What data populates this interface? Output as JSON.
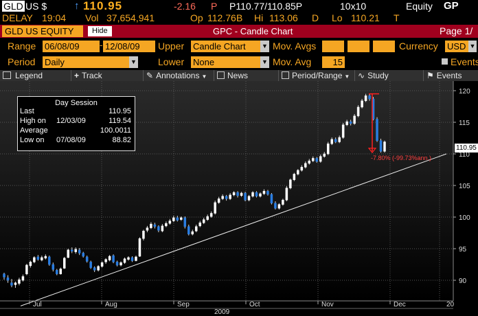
{
  "quote": {
    "ticker": "GLD",
    "market": "US $",
    "arrow": "↑",
    "last": "110.95",
    "change": "-2.16",
    "change_flag": "P",
    "bid_ask": "P110.77/110.85P",
    "size": "10x10",
    "sector": "Equity",
    "sector_code": "GP",
    "delay_label": "DELAY",
    "delay_time": "19:04",
    "vol_label": "Vol",
    "vol": "37,654,941",
    "op_label": "Op",
    "op": "112.76",
    "op_flag": "B",
    "hi_label": "Hi",
    "hi": "113.06",
    "hi_flag": "D",
    "lo_label": "Lo",
    "lo": "110.21",
    "lo_flag": "T"
  },
  "titlebar": {
    "security": "GLD US EQUITY",
    "hide": "Hide",
    "title": "GPC - Candle Chart",
    "page": "Page 1/"
  },
  "controls": {
    "range_label": "Range",
    "start_date": "06/08/09",
    "end_date": "12/08/09",
    "upper_label": "Upper",
    "upper_value": "Candle Chart",
    "mov_avgs_label": "Mov. Avgs",
    "currency_label": "Currency",
    "currency_value": "USD",
    "period_label": "Period",
    "period_value": "Daily",
    "lower_label": "Lower",
    "lower_value": "None",
    "mov_avg_label": "Mov. Avg",
    "mov_avg_value": "15",
    "events_label": "Events"
  },
  "toolbar": {
    "legend": "Legend",
    "track": "Track",
    "annotations": "Annotations",
    "news": "News",
    "period_range": "Period/Range",
    "study": "Study",
    "events": "Events"
  },
  "day_session": {
    "title": "Day Session",
    "last_label": "Last",
    "last_value": "110.95",
    "high_label": "High on",
    "high_date": "12/03/09",
    "high_value": "119.54",
    "avg_label": "Average",
    "avg_value": "100.0011",
    "low_label": "Low on",
    "low_date": "07/08/09",
    "low_value": "88.82"
  },
  "annotation": {
    "drop_text": "-7.80% (-99.73%ann.)"
  },
  "price_flag": "110.95",
  "colors": {
    "amber": "#f5a623",
    "red_bar": "#a0001e",
    "up_candle": "#ffffff",
    "down_candle": "#2a7de1"
  },
  "chart_data": {
    "type": "candlestick",
    "ylim": [
      88,
      121
    ],
    "y_ticks": [
      "90",
      "95",
      "100",
      "105",
      "110",
      "115",
      "120"
    ],
    "x_months": [
      "Jul",
      "Aug",
      "Sep",
      "Oct",
      "Nov",
      "Dec"
    ],
    "x_year": "2009",
    "x_right_label": "20",
    "trendline": {
      "start": [
        0,
        88.0
      ],
      "end": [
        129,
        110.0
      ]
    },
    "candles": [
      [
        91.0,
        90.5,
        91.2,
        90.1
      ],
      [
        90.4,
        90.0,
        90.8,
        89.6
      ],
      [
        89.6,
        89.2,
        90.2,
        88.9
      ],
      [
        89.3,
        89.6,
        89.8,
        88.8
      ],
      [
        89.5,
        90.1,
        90.4,
        89.2
      ],
      [
        90.0,
        90.6,
        90.9,
        89.8
      ],
      [
        91.0,
        92.4,
        92.6,
        90.8
      ],
      [
        92.3,
        92.9,
        93.1,
        92.0
      ],
      [
        92.9,
        93.6,
        93.8,
        92.7
      ],
      [
        93.7,
        93.3,
        94.0,
        93.1
      ],
      [
        93.2,
        93.6,
        93.9,
        93.0
      ],
      [
        93.5,
        93.8,
        94.1,
        93.3
      ],
      [
        93.7,
        92.5,
        93.9,
        92.3
      ],
      [
        92.5,
        91.7,
        92.8,
        91.4
      ],
      [
        91.6,
        91.0,
        91.8,
        90.8
      ],
      [
        91.0,
        91.8,
        92.0,
        90.9
      ],
      [
        91.9,
        93.5,
        93.7,
        91.8
      ],
      [
        93.6,
        94.8,
        95.0,
        93.5
      ],
      [
        94.8,
        94.6,
        95.2,
        94.3
      ],
      [
        94.5,
        94.9,
        95.2,
        94.2
      ],
      [
        94.8,
        94.3,
        95.1,
        94.0
      ],
      [
        94.3,
        93.8,
        94.5,
        93.6
      ],
      [
        93.7,
        93.0,
        93.9,
        92.8
      ],
      [
        92.9,
        92.0,
        93.1,
        91.8
      ],
      [
        92.0,
        91.6,
        92.2,
        91.3
      ],
      [
        91.6,
        92.2,
        92.4,
        91.4
      ],
      [
        92.2,
        92.8,
        93.0,
        92.0
      ],
      [
        92.9,
        93.3,
        93.5,
        92.6
      ],
      [
        93.2,
        93.8,
        94.0,
        93.0
      ],
      [
        93.9,
        92.9,
        94.1,
        92.7
      ],
      [
        92.9,
        92.4,
        93.1,
        92.2
      ],
      [
        92.4,
        92.8,
        93.0,
        92.2
      ],
      [
        92.8,
        93.4,
        93.6,
        92.6
      ],
      [
        93.3,
        93.6,
        93.8,
        93.1
      ],
      [
        93.6,
        93.1,
        93.8,
        92.9
      ],
      [
        93.1,
        93.7,
        93.9,
        93.0
      ],
      [
        93.8,
        96.6,
        96.8,
        93.7
      ],
      [
        96.6,
        97.8,
        98.0,
        96.3
      ],
      [
        97.9,
        98.3,
        98.6,
        97.6
      ],
      [
        98.3,
        98.9,
        99.2,
        98.1
      ],
      [
        98.8,
        98.5,
        99.1,
        98.2
      ],
      [
        98.5,
        97.9,
        98.7,
        97.6
      ],
      [
        97.8,
        98.6,
        98.9,
        97.6
      ],
      [
        98.6,
        99.0,
        99.3,
        98.4
      ],
      [
        99.0,
        99.4,
        99.7,
        98.8
      ],
      [
        99.4,
        99.9,
        100.2,
        99.2
      ],
      [
        99.9,
        99.5,
        100.2,
        99.3
      ],
      [
        99.6,
        99.9,
        100.1,
        99.4
      ],
      [
        99.9,
        98.5,
        100.1,
        98.2
      ],
      [
        98.5,
        97.3,
        98.8,
        97.1
      ],
      [
        97.3,
        97.7,
        98.0,
        97.1
      ],
      [
        97.8,
        98.5,
        98.8,
        97.6
      ],
      [
        98.6,
        99.1,
        99.4,
        98.4
      ],
      [
        99.1,
        99.6,
        99.9,
        98.9
      ],
      [
        99.6,
        100.1,
        100.4,
        99.4
      ],
      [
        100.1,
        100.6,
        100.9,
        99.9
      ],
      [
        100.6,
        102.3,
        102.6,
        100.4
      ],
      [
        102.3,
        102.9,
        103.2,
        102.1
      ],
      [
        102.9,
        103.3,
        103.6,
        102.7
      ],
      [
        103.3,
        102.9,
        103.5,
        102.6
      ],
      [
        102.9,
        103.5,
        103.8,
        102.7
      ],
      [
        103.5,
        103.9,
        104.1,
        103.3
      ],
      [
        103.9,
        103.4,
        104.1,
        103.1
      ],
      [
        103.4,
        103.8,
        104.0,
        103.2
      ],
      [
        103.8,
        102.7,
        104.0,
        102.5
      ],
      [
        102.7,
        103.3,
        103.5,
        102.5
      ],
      [
        103.3,
        103.9,
        104.1,
        103.1
      ],
      [
        103.9,
        103.3,
        104.1,
        103.1
      ],
      [
        103.3,
        103.7,
        103.9,
        103.1
      ],
      [
        103.7,
        104.1,
        104.4,
        103.5
      ],
      [
        104.1,
        103.6,
        104.3,
        103.4
      ],
      [
        103.6,
        102.2,
        103.8,
        102.0
      ],
      [
        102.2,
        101.4,
        102.5,
        101.2
      ],
      [
        101.4,
        102.0,
        102.2,
        101.2
      ],
      [
        102.0,
        102.7,
        102.9,
        101.8
      ],
      [
        102.7,
        104.6,
        104.9,
        102.5
      ],
      [
        104.6,
        105.9,
        106.1,
        104.4
      ],
      [
        105.9,
        106.8,
        107.0,
        105.7
      ],
      [
        106.8,
        107.4,
        107.6,
        106.6
      ],
      [
        107.4,
        107.9,
        108.2,
        107.2
      ],
      [
        107.9,
        108.5,
        108.8,
        107.7
      ],
      [
        108.5,
        108.9,
        109.2,
        108.3
      ],
      [
        108.9,
        109.3,
        109.6,
        108.7
      ],
      [
        109.3,
        108.8,
        109.5,
        108.6
      ],
      [
        108.8,
        109.6,
        109.9,
        108.6
      ],
      [
        109.6,
        110.0,
        110.3,
        109.4
      ],
      [
        110.0,
        111.6,
        111.9,
        109.8
      ],
      [
        111.6,
        112.3,
        112.6,
        111.4
      ],
      [
        112.3,
        111.9,
        112.6,
        111.7
      ],
      [
        111.9,
        112.6,
        112.9,
        111.7
      ],
      [
        112.6,
        114.6,
        114.9,
        112.4
      ],
      [
        114.6,
        115.1,
        115.4,
        114.4
      ],
      [
        115.1,
        114.8,
        115.4,
        114.5
      ],
      [
        114.8,
        116.0,
        116.3,
        114.6
      ],
      [
        116.0,
        117.4,
        117.7,
        115.8
      ],
      [
        117.4,
        118.4,
        118.7,
        117.2
      ],
      [
        118.4,
        119.2,
        119.5,
        118.2
      ],
      [
        119.2,
        118.7,
        119.5,
        118.4
      ],
      [
        118.7,
        115.5,
        119.0,
        115.3
      ],
      [
        115.5,
        112.1,
        115.8,
        111.9
      ],
      [
        112.1,
        110.4,
        112.4,
        110.2
      ],
      [
        110.4,
        111.9,
        112.1,
        110.2
      ]
    ]
  }
}
